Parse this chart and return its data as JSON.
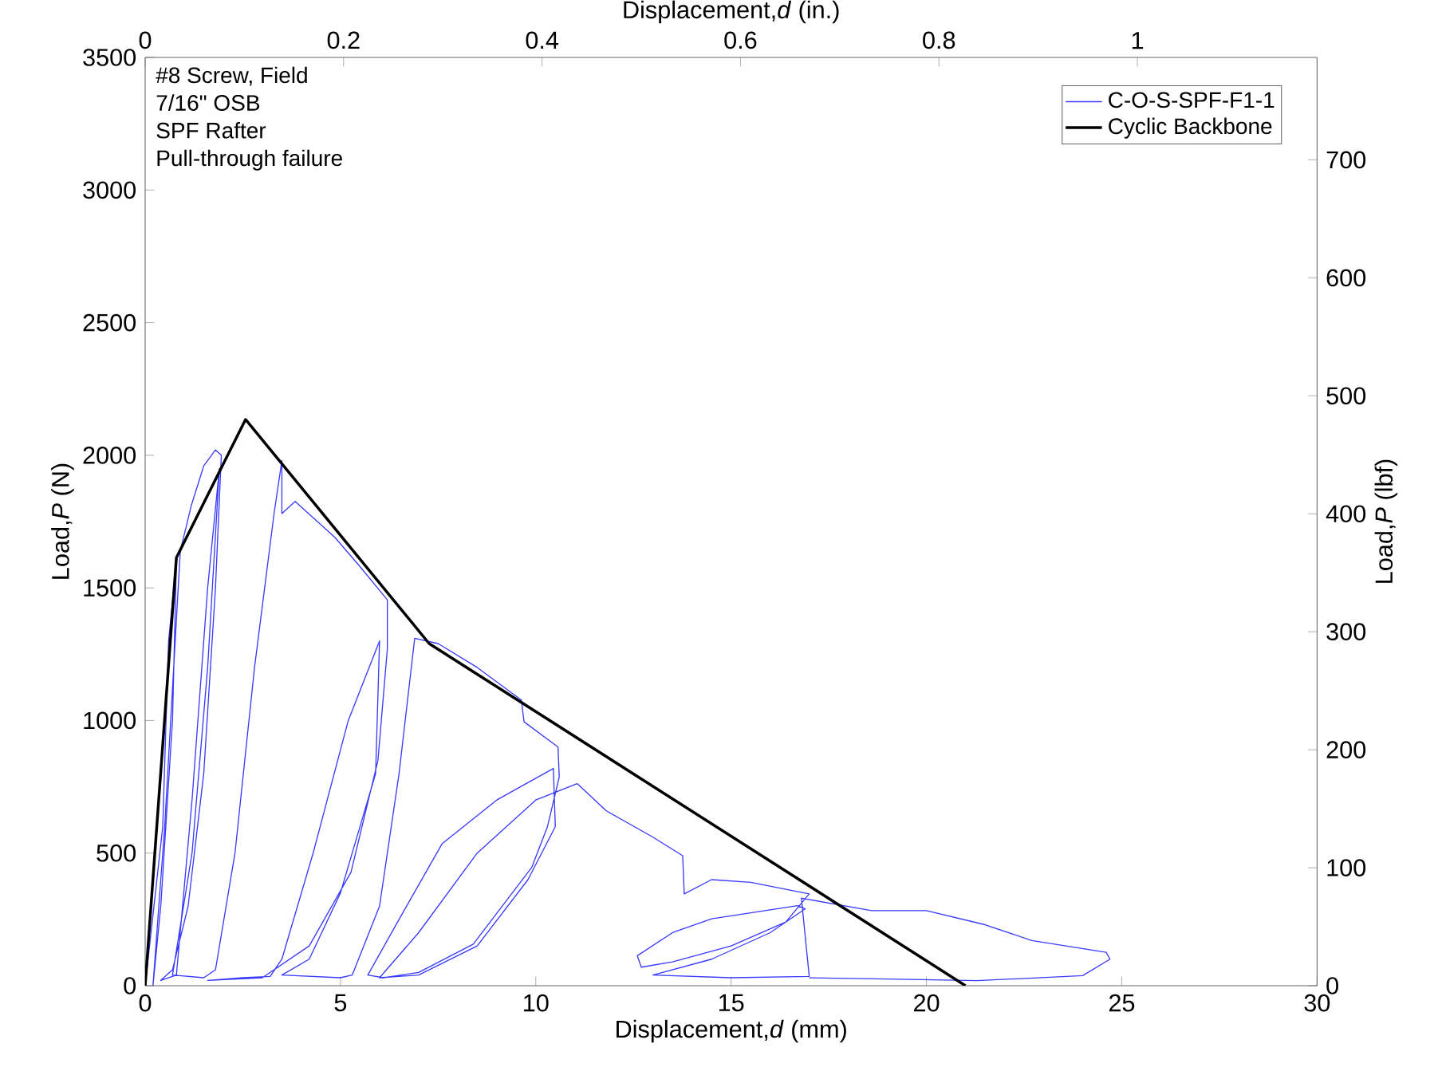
{
  "chart_data": {
    "type": "line",
    "xlabel": "Displacement,*d* (mm)",
    "ylabel": "Load,*P* (N)",
    "x2label": "Displacement,*d* (in.)",
    "y2label": "Load,*P* (lbf)",
    "annotations": [
      "#8 Screw, Field",
      "7/16\" OSB",
      "SPF Rafter",
      "Pull-through failure"
    ],
    "xlim": [
      0,
      30
    ],
    "xticks": [
      0,
      5,
      10,
      15,
      20,
      25,
      30
    ],
    "ylim": [
      0,
      3500
    ],
    "yticks": [
      0,
      500,
      1000,
      1500,
      2000,
      2500,
      3000,
      3500
    ],
    "x2lim": [
      0,
      1.1811
    ],
    "x2ticks": [
      0,
      0.2,
      0.4,
      0.6,
      0.8,
      1
    ],
    "y2lim": [
      0,
      786.8
    ],
    "y2ticks": [
      0,
      100,
      200,
      300,
      400,
      500,
      600,
      700
    ],
    "legend": "top right",
    "grid": false,
    "series": [
      {
        "name": "C-O-S-SPF-F1-1",
        "color": "#3a3aff",
        "x": [
          0,
          0.45,
          0.6,
          0.8,
          0.7,
          0.4,
          0.2,
          0.5,
          0.9,
          1.18,
          1.5,
          1.8,
          1.95,
          1.8,
          1.5,
          1.1,
          0.7,
          0.4,
          0.8,
          1.2,
          1.6,
          1.9,
          1.6,
          1.2,
          0.7,
          1.5,
          1.8,
          2.3,
          2.8,
          3.3,
          3.5,
          3.5,
          3.84,
          4.86,
          5.5,
          6.2,
          6.2,
          5.96,
          5.27,
          4.2,
          3.0,
          1.6,
          2.5,
          3.2,
          3.5,
          4.3,
          5.2,
          6.0,
          5.9,
          5.0,
          4.2,
          3.5,
          5.0,
          5.3,
          6.0,
          6.5,
          6.9,
          7.5,
          8.5,
          9.63,
          9.7,
          10.57,
          10.6,
          10.3,
          9.9,
          8.4,
          7.0,
          6.1,
          5.7,
          6.5,
          7.6,
          9.0,
          10.45,
          10.5,
          9.8,
          8.5,
          7.0,
          6.0,
          7.0,
          8.5,
          10.0,
          11.06,
          11.8,
          13.0,
          13.76,
          13.8,
          14.5,
          15.5,
          17.0,
          16.4,
          15.0,
          13.5,
          12.7,
          12.6,
          13.5,
          14.5,
          16.7,
          16.9,
          16.0,
          14.5,
          13.0,
          15.0,
          17.0,
          16.8,
          18.6,
          20.0,
          21.5,
          22.7,
          24.6,
          24.7,
          24.0,
          21.3,
          19.0,
          17.0
        ],
        "values": [
          0,
          600,
          1300,
          1600,
          1000,
          300,
          0,
          600,
          1640,
          1810,
          1960,
          2020,
          2000,
          1500,
          800,
          300,
          60,
          20,
          40,
          700,
          1500,
          1950,
          1200,
          500,
          40,
          30,
          60,
          500,
          1200,
          1780,
          1980,
          1780,
          1826,
          1690,
          1580,
          1455,
          1270,
          850,
          428,
          150,
          30,
          20,
          30,
          35,
          100,
          500,
          1000,
          1300,
          800,
          350,
          100,
          40,
          30,
          40,
          300,
          800,
          1310,
          1290,
          1200,
          1077,
          995,
          900,
          787,
          600,
          447,
          157,
          50,
          30,
          40,
          250,
          535,
          700,
          819,
          600,
          400,
          150,
          40,
          30,
          200,
          500,
          700,
          762,
          660,
          560,
          490,
          346,
          400,
          390,
          346,
          240,
          150,
          90,
          70,
          113,
          200,
          252,
          302,
          290,
          200,
          100,
          40,
          30,
          35,
          330,
          283,
          283,
          230,
          170,
          126,
          100,
          38,
          19,
          25,
          30
        ]
      },
      {
        "name": "Cyclic Backbone",
        "color": "#000000",
        "x": [
          0,
          0.8,
          2.57,
          7.27,
          21.0
        ],
        "values": [
          0,
          1614,
          2135,
          1290,
          0
        ]
      }
    ]
  }
}
